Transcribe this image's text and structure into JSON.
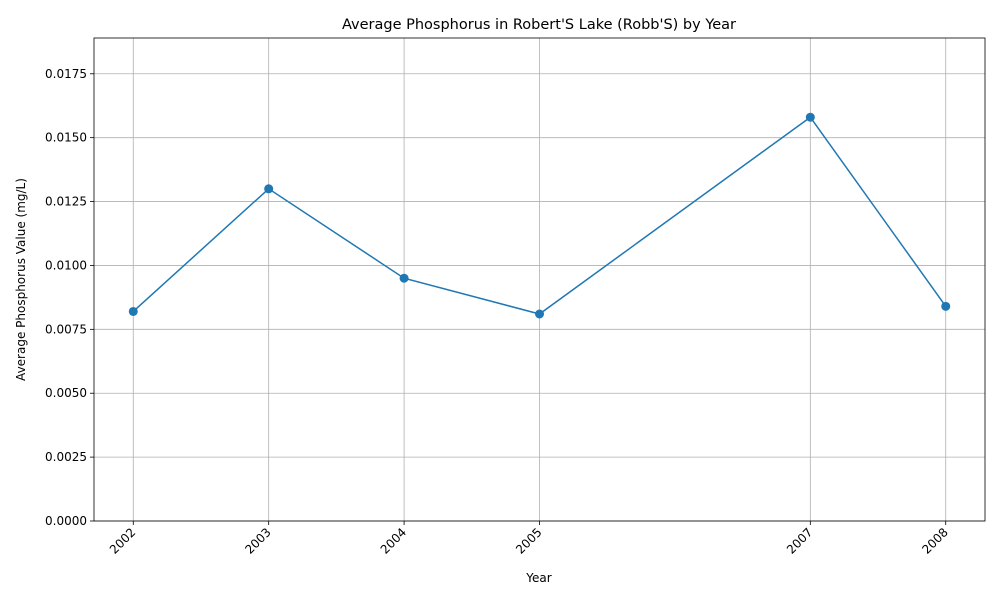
{
  "chart_data": {
    "type": "line",
    "title": "Average Phosphorus in Robert'S Lake (Robb'S) by Year",
    "xlabel": "Year",
    "ylabel": "Average Phosphorus Value (mg/L)",
    "x": [
      2002,
      2003,
      2004,
      2005,
      2007,
      2008
    ],
    "x_tick_labels": [
      "2002",
      "2003",
      "2004",
      "2005",
      "2007",
      "2008"
    ],
    "series": [
      {
        "values": [
          0.0082,
          0.013,
          0.0095,
          0.0081,
          0.0158,
          0.0084
        ],
        "color": "#1f77b4",
        "marker": "circle"
      }
    ],
    "y_ticks": [
      0.0,
      0.0025,
      0.005,
      0.0075,
      0.01,
      0.0125,
      0.015,
      0.0175
    ],
    "y_tick_labels": [
      "0.0000",
      "0.0025",
      "0.0050",
      "0.0075",
      "0.0100",
      "0.0125",
      "0.0150",
      "0.0175"
    ],
    "xlim": [
      2001.71,
      2008.29
    ],
    "ylim": [
      0,
      0.0189
    ],
    "grid": true,
    "x_tick_rotation_deg": 45
  }
}
